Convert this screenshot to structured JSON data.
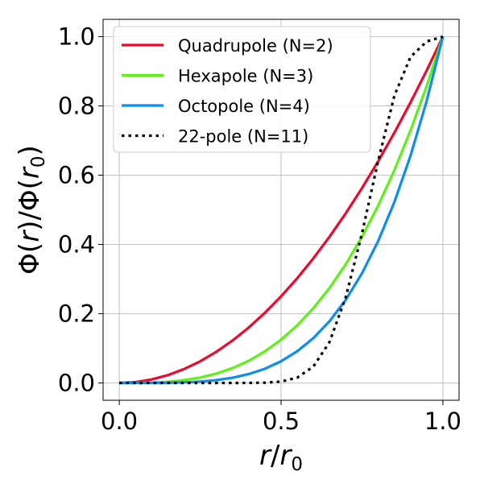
{
  "chart_data": {
    "type": "line",
    "xlim": [
      -0.05,
      1.05
    ],
    "ylim": [
      -0.05,
      1.05
    ],
    "xticks": [
      0.0,
      0.5,
      1.0
    ],
    "yticks": [
      0.0,
      0.2,
      0.4,
      0.6,
      0.8,
      1.0
    ],
    "xtick_labels": [
      "0.0",
      "0.5",
      "1.0"
    ],
    "ytick_labels": [
      "0.0",
      "0.2",
      "0.4",
      "0.6",
      "0.8",
      "1.0"
    ],
    "xlabel": "r/r0",
    "ylabel": "Φ(r)/Φ(r0)",
    "grid": true,
    "legend_position": "top-left",
    "x": [
      0.0,
      0.05,
      0.1,
      0.15,
      0.2,
      0.25,
      0.3,
      0.35,
      0.4,
      0.45,
      0.5,
      0.55,
      0.6,
      0.65,
      0.7,
      0.75,
      0.8,
      0.85,
      0.9,
      0.95,
      1.0
    ],
    "series": [
      {
        "name": "Quadrupole (N=2)",
        "color": "#f0072e",
        "style": "solid",
        "values": [
          0.0,
          0.0025,
          0.01,
          0.0225,
          0.04,
          0.0625,
          0.09,
          0.1225,
          0.16,
          0.2025,
          0.25,
          0.3025,
          0.36,
          0.4225,
          0.49,
          0.5625,
          0.64,
          0.7225,
          0.81,
          0.9025,
          1.0
        ]
      },
      {
        "name": "Hexapole (N=3)",
        "color": "#5cf216",
        "style": "solid",
        "values": [
          0.0,
          0.000125,
          0.001,
          0.003375,
          0.008,
          0.015625,
          0.027,
          0.042875,
          0.064,
          0.091125,
          0.125,
          0.166375,
          0.216,
          0.274625,
          0.343,
          0.421875,
          0.512,
          0.614125,
          0.729,
          0.857375,
          1.0
        ]
      },
      {
        "name": "Octopole (N=4)",
        "color": "#0a8ef0",
        "style": "solid",
        "values": [
          0.0,
          6.3e-06,
          0.0001,
          0.000506,
          0.0016,
          0.003906,
          0.0081,
          0.015006,
          0.0256,
          0.041006,
          0.0625,
          0.091506,
          0.1296,
          0.178506,
          0.2401,
          0.316406,
          0.4096,
          0.522006,
          0.6561,
          0.814506,
          1.0
        ]
      },
      {
        "name": "22-pole (N=11)",
        "color": "#000000",
        "style": "dotted",
        "values": [
          0.0,
          0.0,
          0.0,
          0.0,
          0.0,
          0.0,
          6e-07,
          9.6e-06,
          0.000105,
          0.000757,
          0.00391,
          0.015369,
          0.047345,
          0.118747,
          0.247876,
          0.431684,
          0.641,
          0.829,
          0.9414,
          0.986,
          1.0
        ]
      }
    ]
  }
}
